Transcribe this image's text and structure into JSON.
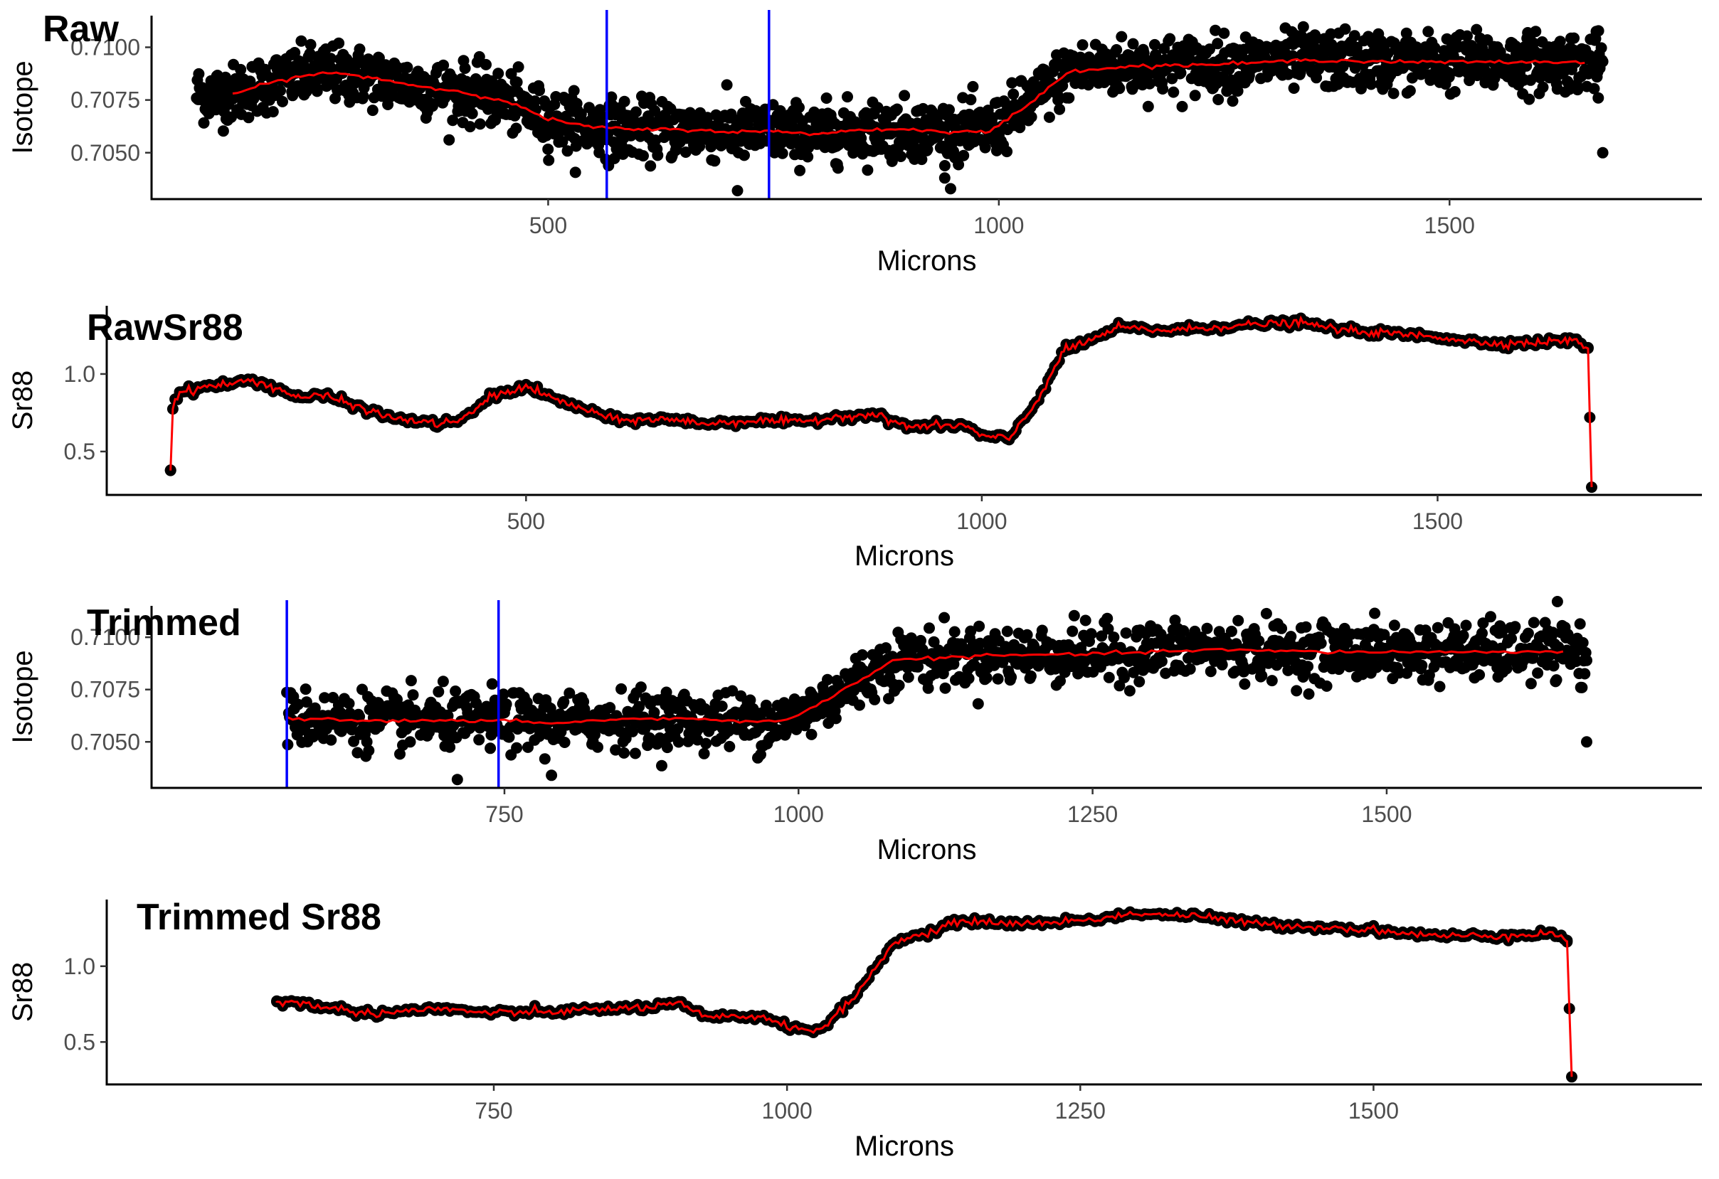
{
  "chart_data": [
    {
      "type": "scatter",
      "title": "Raw",
      "xlabel": "Microns",
      "ylabel": "Isotope",
      "xticks": [
        500,
        1000,
        1500
      ],
      "yticks": [
        0.705,
        0.7075,
        0.71
      ],
      "ytick_labels": [
        "0.7050",
        "0.7075",
        "0.7100"
      ],
      "xlim": [
        60,
        1780
      ],
      "ylim": [
        0.7028,
        0.7115
      ],
      "point_color": "#000000",
      "smooth_color": "#ff0000",
      "vline_color": "#0000ff",
      "vlines": [
        565,
        745
      ],
      "x_range": [
        110,
        1670
      ],
      "smooth": [
        [
          150,
          0.7078
        ],
        [
          200,
          0.7084
        ],
        [
          250,
          0.7088
        ],
        [
          300,
          0.7086
        ],
        [
          350,
          0.7082
        ],
        [
          400,
          0.7079
        ],
        [
          450,
          0.7075
        ],
        [
          500,
          0.7066
        ],
        [
          550,
          0.7062
        ],
        [
          600,
          0.7061
        ],
        [
          650,
          0.7061
        ],
        [
          700,
          0.706
        ],
        [
          750,
          0.706
        ],
        [
          800,
          0.7059
        ],
        [
          850,
          0.7061
        ],
        [
          900,
          0.7061
        ],
        [
          950,
          0.706
        ],
        [
          990,
          0.706
        ],
        [
          1030,
          0.7072
        ],
        [
          1080,
          0.7089
        ],
        [
          1150,
          0.7091
        ],
        [
          1250,
          0.7092
        ],
        [
          1350,
          0.7094
        ],
        [
          1450,
          0.7093
        ],
        [
          1550,
          0.7093
        ],
        [
          1650,
          0.7093
        ]
      ],
      "outliers": [
        [
          1670,
          0.705
        ],
        [
          1665,
          0.7076
        ],
        [
          710,
          0.7032
        ],
        [
          940,
          0.7038
        ]
      ],
      "noise_sd": 0.0009
    },
    {
      "type": "line",
      "title": "RawSr88",
      "xlabel": "Microns",
      "ylabel": "Sr88",
      "xticks": [
        500,
        1000,
        1500
      ],
      "yticks": [
        0.5,
        1.0
      ],
      "ytick_labels": [
        "0.5",
        "1.0"
      ],
      "xlim": [
        40,
        1790
      ],
      "ylim": [
        0.22,
        1.44
      ],
      "point_color": "#000000",
      "line_color": "#ff0000",
      "series": [
        [
          110,
          0.38
        ],
        [
          112,
          0.79
        ],
        [
          120,
          0.88
        ],
        [
          150,
          0.92
        ],
        [
          180,
          0.94
        ],
        [
          200,
          0.96
        ],
        [
          230,
          0.9
        ],
        [
          250,
          0.85
        ],
        [
          280,
          0.86
        ],
        [
          300,
          0.82
        ],
        [
          350,
          0.72
        ],
        [
          400,
          0.68
        ],
        [
          430,
          0.7
        ],
        [
          460,
          0.85
        ],
        [
          500,
          0.92
        ],
        [
          530,
          0.84
        ],
        [
          560,
          0.78
        ],
        [
          600,
          0.7
        ],
        [
          650,
          0.71
        ],
        [
          700,
          0.68
        ],
        [
          750,
          0.7
        ],
        [
          800,
          0.69
        ],
        [
          850,
          0.73
        ],
        [
          880,
          0.74
        ],
        [
          920,
          0.66
        ],
        [
          980,
          0.67
        ],
        [
          1000,
          0.6
        ],
        [
          1030,
          0.58
        ],
        [
          1060,
          0.82
        ],
        [
          1090,
          1.15
        ],
        [
          1120,
          1.22
        ],
        [
          1150,
          1.3
        ],
        [
          1200,
          1.28
        ],
        [
          1250,
          1.3
        ],
        [
          1300,
          1.32
        ],
        [
          1350,
          1.33
        ],
        [
          1400,
          1.28
        ],
        [
          1450,
          1.26
        ],
        [
          1500,
          1.24
        ],
        [
          1550,
          1.2
        ],
        [
          1600,
          1.2
        ],
        [
          1650,
          1.22
        ],
        [
          1665,
          1.17
        ],
        [
          1667,
          0.72
        ],
        [
          1669,
          0.27
        ]
      ]
    },
    {
      "type": "scatter",
      "title": "Trimmed",
      "xlabel": "Microns",
      "ylabel": "Isotope",
      "xticks": [
        750,
        1000,
        1250,
        1500
      ],
      "yticks": [
        0.705,
        0.7075,
        0.71
      ],
      "ytick_labels": [
        "0.7050",
        "0.7075",
        "0.7100"
      ],
      "xlim": [
        450,
        1768
      ],
      "ylim": [
        0.7028,
        0.7115
      ],
      "point_color": "#000000",
      "smooth_color": "#ff0000",
      "vline_color": "#0000ff",
      "vlines": [
        565,
        745
      ],
      "x_range": [
        565,
        1670
      ],
      "smooth": [
        [
          565,
          0.7061
        ],
        [
          600,
          0.7061
        ],
        [
          650,
          0.706
        ],
        [
          700,
          0.706
        ],
        [
          750,
          0.706
        ],
        [
          800,
          0.7059
        ],
        [
          850,
          0.7061
        ],
        [
          900,
          0.7061
        ],
        [
          950,
          0.706
        ],
        [
          990,
          0.706
        ],
        [
          1030,
          0.7072
        ],
        [
          1080,
          0.7089
        ],
        [
          1150,
          0.7091
        ],
        [
          1250,
          0.7092
        ],
        [
          1350,
          0.7094
        ],
        [
          1450,
          0.7093
        ],
        [
          1550,
          0.7093
        ],
        [
          1650,
          0.7093
        ]
      ],
      "outliers": [
        [
          1670,
          0.705
        ],
        [
          1665,
          0.7076
        ],
        [
          710,
          0.7032
        ],
        [
          790,
          0.7034
        ]
      ],
      "noise_sd": 0.0009
    },
    {
      "type": "line",
      "title": "Trimmed Sr88",
      "xlabel": "Microns",
      "ylabel": "Sr88",
      "xticks": [
        750,
        1000,
        1250,
        1500
      ],
      "yticks": [
        0.5,
        1.0
      ],
      "ytick_labels": [
        "0.5",
        "1.0"
      ],
      "xlim": [
        420,
        1780
      ],
      "ylim": [
        0.22,
        1.44
      ],
      "point_color": "#000000",
      "line_color": "#ff0000",
      "series": [
        [
          565,
          0.77
        ],
        [
          600,
          0.74
        ],
        [
          630,
          0.7
        ],
        [
          650,
          0.69
        ],
        [
          700,
          0.72
        ],
        [
          750,
          0.69
        ],
        [
          800,
          0.7
        ],
        [
          850,
          0.72
        ],
        [
          880,
          0.73
        ],
        [
          910,
          0.75
        ],
        [
          930,
          0.66
        ],
        [
          980,
          0.67
        ],
        [
          1000,
          0.6
        ],
        [
          1030,
          0.58
        ],
        [
          1060,
          0.82
        ],
        [
          1090,
          1.15
        ],
        [
          1120,
          1.22
        ],
        [
          1150,
          1.3
        ],
        [
          1200,
          1.28
        ],
        [
          1250,
          1.3
        ],
        [
          1300,
          1.35
        ],
        [
          1350,
          1.33
        ],
        [
          1400,
          1.28
        ],
        [
          1450,
          1.26
        ],
        [
          1500,
          1.24
        ],
        [
          1550,
          1.2
        ],
        [
          1600,
          1.2
        ],
        [
          1650,
          1.22
        ],
        [
          1665,
          1.17
        ],
        [
          1667,
          0.72
        ],
        [
          1669,
          0.27
        ]
      ]
    }
  ]
}
